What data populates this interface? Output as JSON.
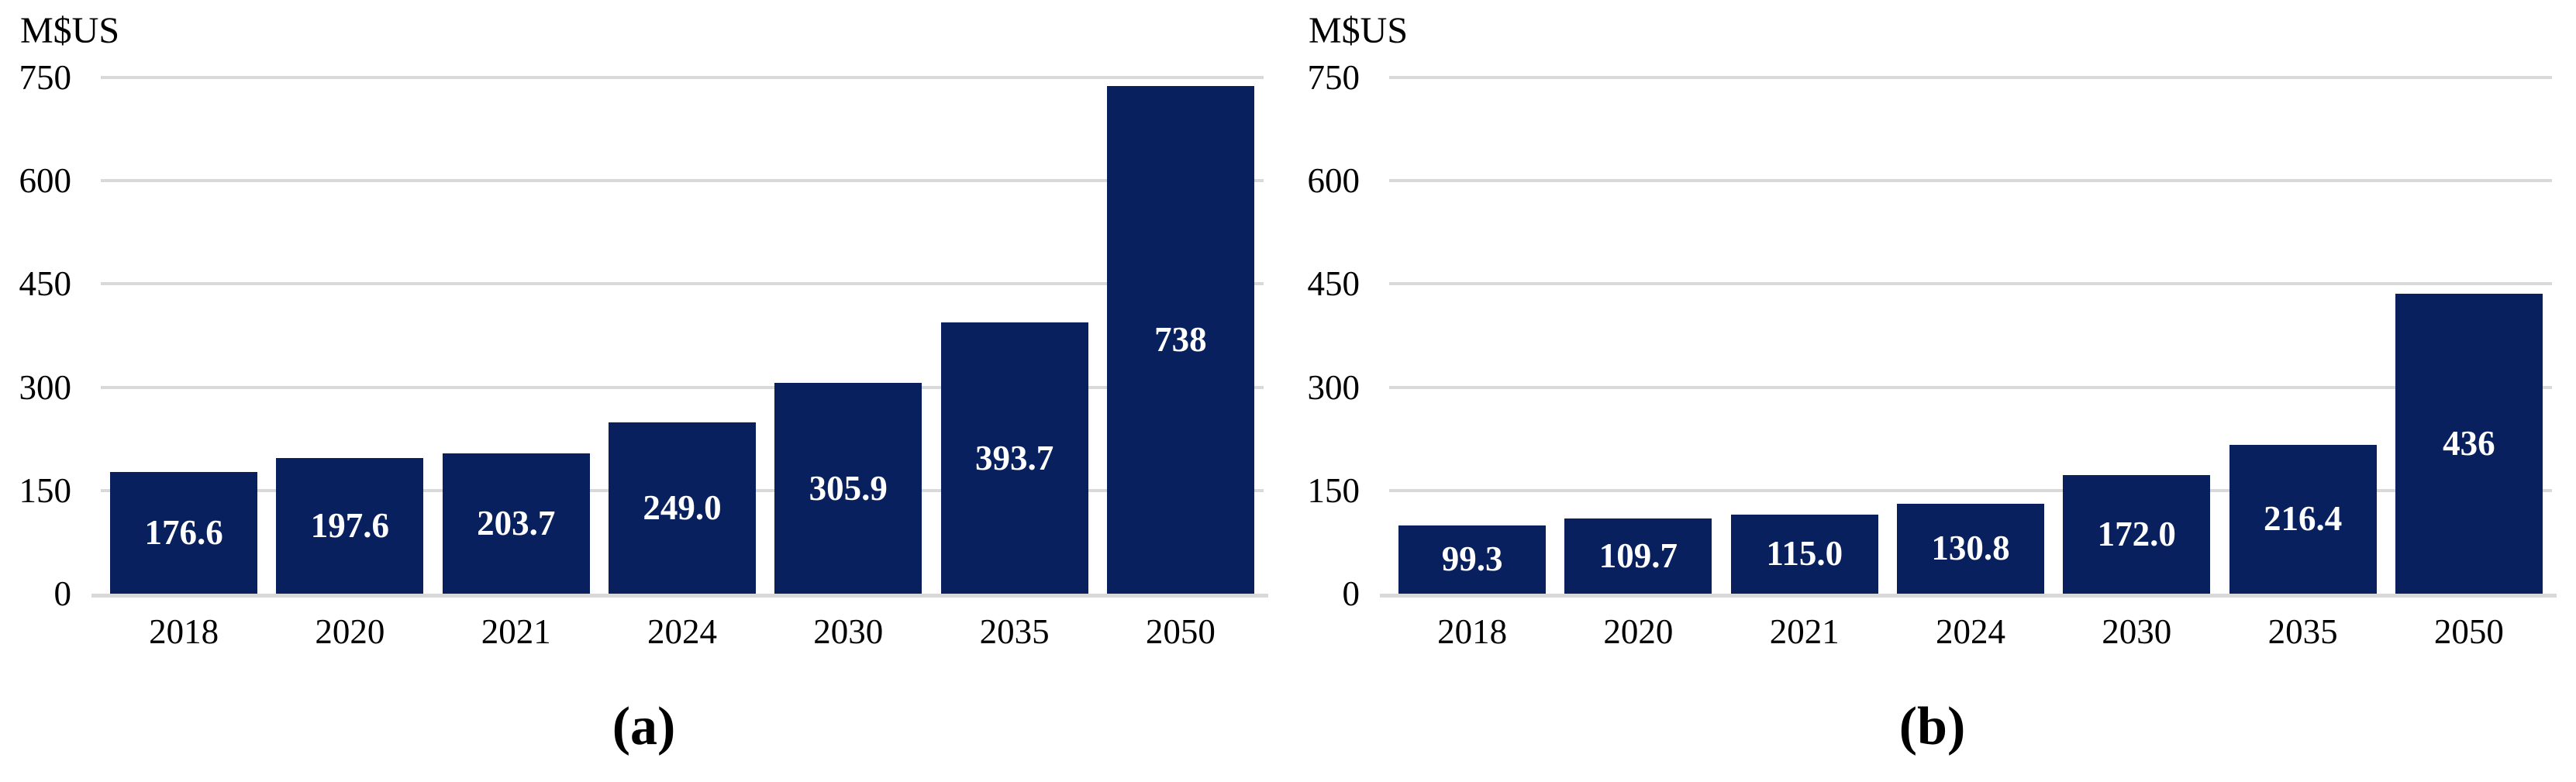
{
  "figure": {
    "background": "#FFFFFF",
    "bar_color": "#08215E",
    "bar_label_color": "#FFFFFF",
    "gridline_color": "#D9D9D9",
    "axis_text_color": "#000000"
  },
  "chart_data": [
    {
      "type": "bar",
      "panel": "a",
      "caption": "(a)",
      "ylabel": "M$US",
      "xlabel": "",
      "categories": [
        "2018",
        "2020",
        "2021",
        "2024",
        "2030",
        "2035",
        "2050"
      ],
      "values": [
        176.6,
        197.6,
        203.7,
        249.0,
        305.9,
        393.7,
        738
      ],
      "bar_labels": [
        "176.6",
        "197.6",
        "203.7",
        "249.0",
        "305.9",
        "393.7",
        "738"
      ],
      "ylim": [
        0,
        750
      ],
      "yticks": [
        0,
        150,
        300,
        450,
        600,
        750
      ],
      "grid": true,
      "legend": "none"
    },
    {
      "type": "bar",
      "panel": "b",
      "caption": "(b)",
      "ylabel": "M$US",
      "xlabel": "",
      "categories": [
        "2018",
        "2020",
        "2021",
        "2024",
        "2030",
        "2035",
        "2050"
      ],
      "values": [
        99.3,
        109.7,
        115.0,
        130.8,
        172.0,
        216.4,
        436
      ],
      "bar_labels": [
        "99.3",
        "109.7",
        "115.0",
        "130.8",
        "172.0",
        "216.4",
        "436"
      ],
      "ylim": [
        0,
        750
      ],
      "yticks": [
        0,
        150,
        300,
        450,
        600,
        750
      ],
      "grid": true,
      "legend": "none"
    }
  ]
}
